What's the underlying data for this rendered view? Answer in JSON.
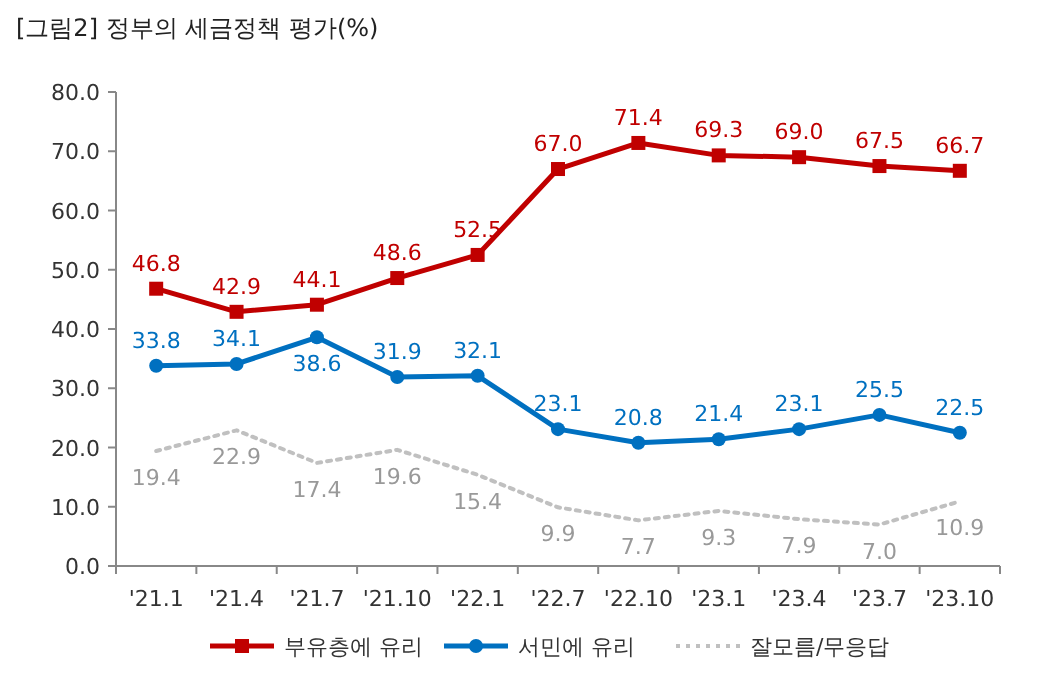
{
  "chart_data": {
    "type": "line",
    "title": "[그림2] 정부의 세금정책 평가(%)",
    "categories": [
      "'21.1",
      "'21.4",
      "'21.7",
      "'21.10",
      "'22.1",
      "'22.7",
      "'22.10",
      "'23.1",
      "'23.4",
      "'23.7",
      "'23.10"
    ],
    "series": [
      {
        "name": "부유층에 유리",
        "color": "#c00000",
        "marker": "square",
        "line_style": "solid",
        "values": [
          46.8,
          42.9,
          44.1,
          48.6,
          52.5,
          67,
          71.4,
          69.3,
          69,
          67.5,
          66.7
        ],
        "value_labels": [
          "46.8",
          "42.9",
          "44.1",
          "48.6",
          "52.5",
          "67.0",
          "71.4",
          "69.3",
          "69.0",
          "67.5",
          "66.7"
        ]
      },
      {
        "name": "서민에 유리",
        "color": "#0070c0",
        "marker": "circle",
        "line_style": "solid",
        "values": [
          33.8,
          34.1,
          38.6,
          31.9,
          32.1,
          23.1,
          20.8,
          21.4,
          23.1,
          25.5,
          22.5
        ],
        "value_labels": [
          "33.8",
          "34.1",
          "38.6",
          "31.9",
          "32.1",
          "23.1",
          "20.8",
          "21.4",
          "23.1",
          "25.5",
          "22.5"
        ]
      },
      {
        "name": "잘모름/무응답",
        "color": "#c0c0c0",
        "marker": "none",
        "line_style": "dotted",
        "values": [
          19.4,
          22.9,
          17.4,
          19.6,
          15.4,
          9.9,
          7.7,
          9.3,
          7.9,
          7,
          10.9
        ],
        "value_labels": [
          "19.4",
          "22.9",
          "17.4",
          "19.6",
          "15.4",
          "9.9",
          "7.7",
          "9.3",
          "7.9",
          "7.0",
          "10.9"
        ]
      }
    ],
    "ylim": [
      0,
      80
    ],
    "yticks": [
      "0.0",
      "10.0",
      "20.0",
      "30.0",
      "40.0",
      "50.0",
      "60.0",
      "70.0",
      "80.0"
    ],
    "legend": "bottom",
    "grid": false
  }
}
